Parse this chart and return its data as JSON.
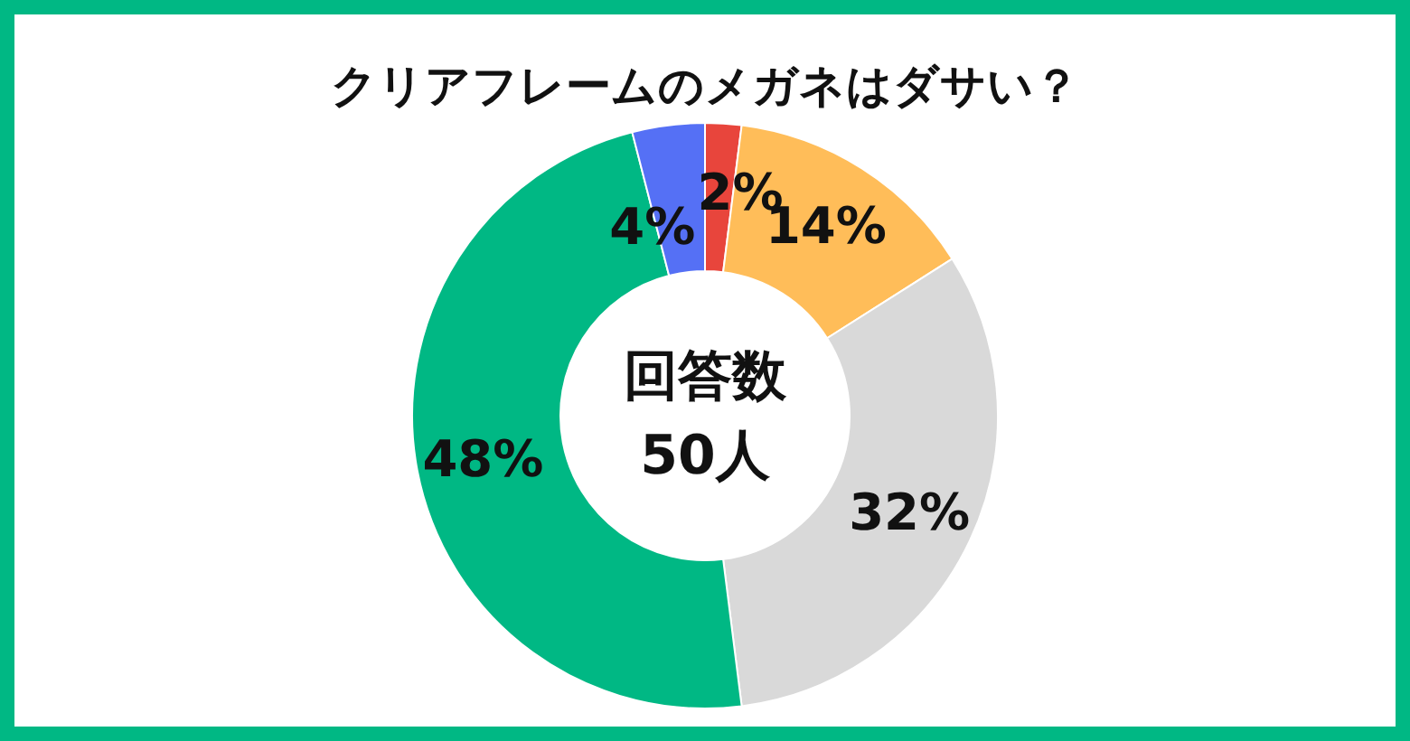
{
  "chart_data": {
    "type": "donut",
    "title": "クリアフレームのメガネはダサい？",
    "categories": [
      null,
      null,
      null,
      null,
      null
    ],
    "values": [
      2,
      14,
      32,
      48,
      4
    ],
    "colors": [
      "#e8453c",
      "#ffbd59",
      "#d9d9d9",
      "#00b884",
      "#5570f5"
    ],
    "value_labels": [
      "2%",
      "14%",
      "32%",
      "48%",
      "4%"
    ],
    "annotations": [
      "回答数",
      "50人"
    ]
  }
}
